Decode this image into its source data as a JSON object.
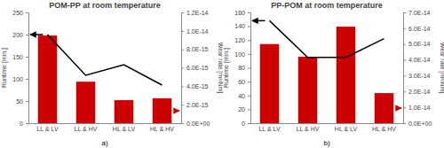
{
  "chart_data": [
    {
      "type": "bar",
      "title": "POM-PP at room temperature",
      "y_label": "Runtime [min.]",
      "y2_label": "Wear rate [m³/Nm]",
      "annotations": [
        "a)"
      ],
      "categories": [
        "LL & LV",
        "LL & HV",
        "HL & LV",
        "HL & HV"
      ],
      "series": [
        {
          "type": "bar",
          "axis": "y2",
          "color": "#cc0000",
          "values": [
            9.5e-15,
            4.5e-15,
            2.5e-15,
            2.7e-15
          ]
        },
        {
          "type": "line",
          "color": "#000000",
          "values": [
            200,
            108,
            132,
            86
          ]
        }
      ],
      "ylim": [
        0,
        250
      ],
      "yticks": [
        0,
        50,
        100,
        150,
        200,
        250
      ],
      "y2lim": [
        0,
        1.2e-14
      ],
      "y2ticks": [
        {
          "value": 0,
          "label": "0.0E+00"
        },
        {
          "value": 2e-15,
          "label": "2.0E-15"
        },
        {
          "value": 4e-15,
          "label": "4.0E-15"
        },
        {
          "value": 6e-15,
          "label": "6.0E-15"
        },
        {
          "value": 8e-15,
          "label": "8.0E-15"
        },
        {
          "value": 1e-14,
          "label": "1.0E-14"
        },
        {
          "value": 1.2e-14,
          "label": "1.2E-14"
        }
      ],
      "grid": false
    },
    {
      "type": "bar",
      "title": "PP-POM at room temperature",
      "y_label": "Runtime [min.]",
      "y2_label": "Wear rate [m³/Nm]",
      "annotations": [
        "b)"
      ],
      "categories": [
        "LL & LV",
        "LL & HV",
        "HL & LV",
        "HL & HV"
      ],
      "series": [
        {
          "type": "bar",
          "axis": "y2",
          "color": "#cc0000",
          "values": [
            5e-14,
            4.2e-14,
            6.1e-14,
            1.9e-14
          ]
        },
        {
          "type": "line",
          "color": "#000000",
          "values": [
            148,
            95,
            95,
            122
          ]
        }
      ],
      "ylim": [
        0,
        160
      ],
      "yticks": [
        0,
        20,
        40,
        60,
        80,
        100,
        120,
        140,
        160
      ],
      "y2lim": [
        0,
        7e-14
      ],
      "y2ticks": [
        {
          "value": 0,
          "label": "0.0E+00"
        },
        {
          "value": 1e-14,
          "label": "1.0E-14"
        },
        {
          "value": 2e-14,
          "label": "2.0E-14"
        },
        {
          "value": 3e-14,
          "label": "3.0E-14"
        },
        {
          "value": 4e-14,
          "label": "4.0E-14"
        },
        {
          "value": 5e-14,
          "label": "5.0E-14"
        },
        {
          "value": 6e-14,
          "label": "6.0E-14"
        },
        {
          "value": 7e-14,
          "label": "7.0E-14"
        }
      ],
      "grid": false
    }
  ]
}
